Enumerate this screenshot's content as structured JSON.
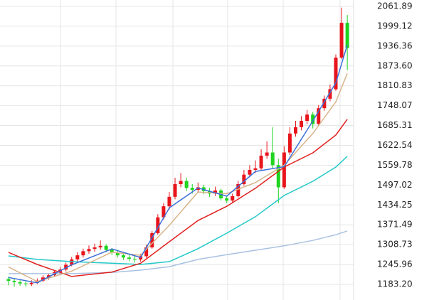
{
  "chart_data": {
    "type": "candlestick",
    "up_color": "#e8141b",
    "down_color": "#1ed41e",
    "ylim": [
      1133.7,
      2082.1
    ],
    "yticks": [
      2061.89,
      1999.12,
      1936.36,
      {
        "value": 1873.6,
        "label": "1873.60"
      },
      1810.83,
      1748.07,
      1685.31,
      1622.54,
      1559.78,
      1497.02,
      1434.25,
      1371.49,
      1308.73,
      1245.96,
      {
        "value": 1183.2,
        "label": "1183.20"
      }
    ],
    "grid": true,
    "open": [
      1200,
      1194,
      1190,
      1186,
      1184,
      1188,
      1195,
      1205,
      1212,
      1222,
      1230,
      1245,
      1262,
      1275,
      1288,
      1295,
      1300,
      1305,
      1292,
      1284,
      1275,
      1268,
      1264,
      1262,
      1272,
      1300,
      1345,
      1395,
      1430,
      1460,
      1500,
      1510,
      1488,
      1482,
      1490,
      1478,
      1470,
      1480,
      1455,
      1448,
      1462,
      1500,
      1530,
      1545,
      1550,
      1590,
      1600,
      1560,
      1490,
      1600,
      1660,
      1680,
      1700,
      1720,
      1690,
      1740,
      1770,
      1800,
      1900,
      2010
    ],
    "high": [
      1208,
      1200,
      1196,
      1192,
      1196,
      1202,
      1212,
      1218,
      1228,
      1238,
      1252,
      1270,
      1285,
      1296,
      1306,
      1312,
      1322,
      1310,
      1298,
      1292,
      1282,
      1276,
      1272,
      1280,
      1308,
      1352,
      1405,
      1440,
      1475,
      1520,
      1535,
      1520,
      1500,
      1505,
      1498,
      1488,
      1492,
      1486,
      1462,
      1470,
      1510,
      1545,
      1560,
      1575,
      1610,
      1635,
      1680,
      1580,
      1620,
      1680,
      1700,
      1715,
      1735,
      1728,
      1750,
      1780,
      1815,
      1910,
      2058,
      2035
    ],
    "low": [
      1180,
      1176,
      1178,
      1176,
      1178,
      1184,
      1190,
      1198,
      1206,
      1214,
      1224,
      1240,
      1256,
      1268,
      1280,
      1286,
      1292,
      1286,
      1276,
      1268,
      1260,
      1256,
      1252,
      1255,
      1266,
      1296,
      1340,
      1388,
      1420,
      1452,
      1490,
      1478,
      1470,
      1474,
      1468,
      1460,
      1462,
      1448,
      1440,
      1442,
      1458,
      1495,
      1522,
      1535,
      1545,
      1580,
      1550,
      1440,
      1485,
      1592,
      1650,
      1670,
      1690,
      1676,
      1685,
      1732,
      1762,
      1795,
      1895,
      1860
    ],
    "close": [
      1194,
      1190,
      1186,
      1184,
      1188,
      1195,
      1205,
      1212,
      1222,
      1230,
      1245,
      1262,
      1275,
      1288,
      1295,
      1300,
      1305,
      1292,
      1284,
      1275,
      1268,
      1264,
      1262,
      1272,
      1300,
      1345,
      1395,
      1430,
      1460,
      1500,
      1510,
      1488,
      1482,
      1490,
      1478,
      1470,
      1480,
      1455,
      1448,
      1462,
      1500,
      1530,
      1545,
      1550,
      1590,
      1600,
      1560,
      1490,
      1600,
      1660,
      1680,
      1700,
      1720,
      1690,
      1740,
      1770,
      1800,
      1900,
      2010,
      1930
    ],
    "lines": [
      {
        "color": "#a9c1e2",
        "x": [
          0,
          5,
          11,
          18,
          23,
          28,
          33,
          38,
          43,
          48,
          53,
          57,
          59
        ],
        "values": [
          1217,
          1217,
          1217,
          1221,
          1228,
          1239,
          1262,
          1277,
          1291,
          1305,
          1322,
          1340,
          1352
        ]
      },
      {
        "color": "#22c8c8",
        "x": [
          0,
          5,
          11,
          18,
          23,
          28,
          33,
          38,
          43,
          48,
          53,
          57,
          59
        ],
        "values": [
          1273,
          1262,
          1255,
          1250,
          1246,
          1255,
          1296,
          1345,
          1397,
          1464,
          1509,
          1554,
          1588
        ]
      },
      {
        "color": "#e0201e",
        "x": [
          0,
          5,
          11,
          18,
          23,
          28,
          33,
          38,
          43,
          48,
          53,
          57,
          59
        ],
        "values": [
          1284,
          1246,
          1208,
          1222,
          1250,
          1318,
          1385,
          1430,
          1487,
          1554,
          1599,
          1655,
          1705
        ]
      },
      {
        "color": "#d8b48a",
        "x": [
          0,
          5,
          11,
          18,
          23,
          28,
          33,
          38,
          43,
          48,
          53,
          57,
          59
        ],
        "values": [
          1238,
          1192,
          1225,
          1285,
          1275,
          1370,
          1475,
          1470,
          1505,
          1560,
          1660,
          1760,
          1850
        ]
      },
      {
        "color": "#3a6fd8",
        "x": [
          0,
          5,
          11,
          18,
          23,
          28,
          33,
          38,
          43,
          48,
          53,
          57,
          59
        ],
        "values": [
          1205,
          1188,
          1245,
          1295,
          1268,
          1425,
          1488,
          1462,
          1540,
          1555,
          1700,
          1820,
          1940
        ]
      }
    ]
  }
}
